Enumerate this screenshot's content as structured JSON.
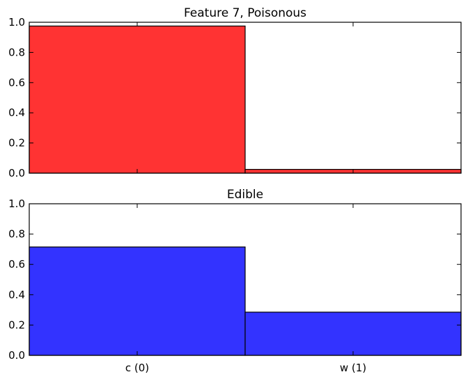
{
  "chart_data": [
    {
      "type": "bar",
      "title": "Feature 7, Poisonous",
      "categories": [
        "c (0)",
        "w (1)"
      ],
      "values": [
        0.975,
        0.025
      ],
      "ylim": [
        0,
        1.0
      ],
      "yticks": [
        "0.0",
        "0.2",
        "0.4",
        "0.6",
        "0.8",
        "1.0"
      ],
      "xlabel": "",
      "ylabel": "",
      "show_category_labels": false,
      "color": "#ff3333",
      "grid": false
    },
    {
      "type": "bar",
      "title": "Edible",
      "categories": [
        "c (0)",
        "w (1)"
      ],
      "values": [
        0.715,
        0.285
      ],
      "ylim": [
        0,
        1.0
      ],
      "yticks": [
        "0.0",
        "0.2",
        "0.4",
        "0.6",
        "0.8",
        "1.0"
      ],
      "xlabel": "",
      "ylabel": "",
      "show_category_labels": true,
      "color": "#3333ff",
      "grid": false
    }
  ]
}
